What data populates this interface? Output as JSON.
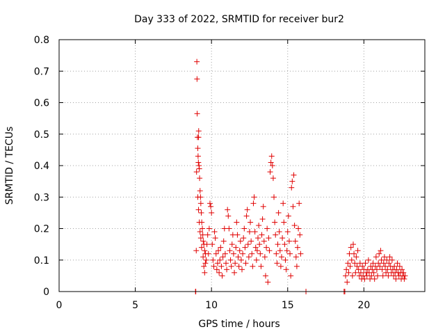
{
  "chart_data": {
    "type": "scatter",
    "title": "Day 333 of 2022, SRMTID for receiver bur2",
    "xlabel": "GPS time / hours",
    "ylabel": "SRMTID / TECUs",
    "xlim": [
      0,
      24
    ],
    "ylim": [
      0,
      0.8
    ],
    "grid": true,
    "marker": "+",
    "series_color": "#e00000",
    "x_ticks": [
      0,
      5,
      10,
      15,
      20
    ],
    "x_tick_labels": [
      "0",
      "5",
      "10",
      "15",
      "20"
    ],
    "y_ticks": [
      0,
      0.1,
      0.2,
      0.3,
      0.4,
      0.5,
      0.6,
      0.7,
      0.8
    ],
    "y_tick_labels": [
      "0",
      "0.1",
      "0.2",
      "0.3",
      "0.4",
      "0.5",
      "0.6",
      "0.7",
      "0.8"
    ],
    "series": [
      {
        "name": "SRMTID bur2",
        "points": [
          [
            8.95,
            0
          ],
          [
            8.97,
            0
          ],
          [
            9.0,
            0.13
          ],
          [
            9.02,
            0.38
          ],
          [
            9.04,
            0.73
          ],
          [
            9.05,
            0.675
          ],
          [
            9.06,
            0.565
          ],
          [
            9.08,
            0.49
          ],
          [
            9.1,
            0.455
          ],
          [
            9.12,
            0.43
          ],
          [
            9.14,
            0.41
          ],
          [
            9.15,
            0.49
          ],
          [
            9.16,
            0.51
          ],
          [
            9.18,
            0.4
          ],
          [
            9.2,
            0.39
          ],
          [
            9.22,
            0.36
          ],
          [
            9.25,
            0.32
          ],
          [
            9.28,
            0.3
          ],
          [
            9.3,
            0.28
          ],
          [
            9.33,
            0.25
          ],
          [
            9.36,
            0.22
          ],
          [
            9.4,
            0.2
          ],
          [
            9.43,
            0.18
          ],
          [
            9.46,
            0.16
          ],
          [
            9.5,
            0.15
          ],
          [
            9.55,
            0.13
          ],
          [
            9.6,
            0.12
          ],
          [
            9.65,
            0.1
          ],
          [
            9.1,
            0.3
          ],
          [
            9.15,
            0.26
          ],
          [
            9.2,
            0.22
          ],
          [
            9.25,
            0.19
          ],
          [
            9.3,
            0.17
          ],
          [
            9.35,
            0.14
          ],
          [
            9.45,
            0.11
          ],
          [
            9.5,
            0.08
          ],
          [
            9.55,
            0.06
          ],
          [
            9.6,
            0.09
          ],
          [
            9.7,
            0.15
          ],
          [
            9.75,
            0.18
          ],
          [
            9.8,
            0.12
          ],
          [
            9.85,
            0.2
          ],
          [
            9.9,
            0.28
          ],
          [
            9.95,
            0.27
          ],
          [
            10.0,
            0.25
          ],
          [
            10.05,
            0.15
          ],
          [
            10.1,
            0.1
          ],
          [
            10.15,
            0.08
          ],
          [
            10.2,
            0.19
          ],
          [
            10.25,
            0.17
          ],
          [
            10.3,
            0.12
          ],
          [
            10.35,
            0.07
          ],
          [
            10.4,
            0.09
          ],
          [
            10.45,
            0.13
          ],
          [
            10.5,
            0.06
          ],
          [
            10.55,
            0.1
          ],
          [
            10.6,
            0.14
          ],
          [
            10.65,
            0.08
          ],
          [
            10.7,
            0.05
          ],
          [
            10.75,
            0.11
          ],
          [
            10.8,
            0.16
          ],
          [
            10.85,
            0.2
          ],
          [
            10.9,
            0.12
          ],
          [
            10.95,
            0.09
          ],
          [
            11.0,
            0.07
          ],
          [
            11.05,
            0.26
          ],
          [
            11.1,
            0.24
          ],
          [
            11.15,
            0.2
          ],
          [
            11.2,
            0.13
          ],
          [
            11.25,
            0.1
          ],
          [
            11.3,
            0.08
          ],
          [
            11.35,
            0.15
          ],
          [
            11.4,
            0.18
          ],
          [
            11.45,
            0.12
          ],
          [
            11.5,
            0.06
          ],
          [
            11.55,
            0.09
          ],
          [
            11.6,
            0.14
          ],
          [
            11.65,
            0.22
          ],
          [
            11.7,
            0.18
          ],
          [
            11.75,
            0.11
          ],
          [
            11.8,
            0.08
          ],
          [
            11.85,
            0.13
          ],
          [
            11.9,
            0.16
          ],
          [
            11.95,
            0.1
          ],
          [
            12.0,
            0.07
          ],
          [
            12.05,
            0.12
          ],
          [
            12.1,
            0.17
          ],
          [
            12.15,
            0.2
          ],
          [
            12.2,
            0.14
          ],
          [
            12.25,
            0.09
          ],
          [
            12.3,
            0.24
          ],
          [
            12.35,
            0.26
          ],
          [
            12.4,
            0.15
          ],
          [
            12.45,
            0.11
          ],
          [
            12.5,
            0.19
          ],
          [
            12.55,
            0.22
          ],
          [
            12.6,
            0.16
          ],
          [
            12.65,
            0.12
          ],
          [
            12.7,
            0.08
          ],
          [
            12.75,
            0.28
          ],
          [
            12.8,
            0.3
          ],
          [
            12.85,
            0.19
          ],
          [
            12.9,
            0.14
          ],
          [
            12.95,
            0.1
          ],
          [
            13.0,
            0.13
          ],
          [
            13.05,
            0.17
          ],
          [
            13.1,
            0.21
          ],
          [
            13.15,
            0.15
          ],
          [
            13.2,
            0.12
          ],
          [
            13.25,
            0.08
          ],
          [
            13.3,
            0.18
          ],
          [
            13.35,
            0.23
          ],
          [
            13.4,
            0.27
          ],
          [
            13.45,
            0.16
          ],
          [
            13.5,
            0.11
          ],
          [
            13.55,
            0.05
          ],
          [
            13.6,
            0.14
          ],
          [
            13.65,
            0.2
          ],
          [
            13.7,
            0.03
          ],
          [
            13.75,
            0.17
          ],
          [
            13.8,
            0.13
          ],
          [
            13.85,
            0.38
          ],
          [
            13.9,
            0.41
          ],
          [
            13.95,
            0.43
          ],
          [
            14.0,
            0.4
          ],
          [
            14.05,
            0.36
          ],
          [
            14.1,
            0.3
          ],
          [
            14.15,
            0.22
          ],
          [
            14.2,
            0.18
          ],
          [
            14.25,
            0.12
          ],
          [
            14.3,
            0.09
          ],
          [
            14.35,
            0.15
          ],
          [
            14.4,
            0.25
          ],
          [
            14.45,
            0.19
          ],
          [
            14.5,
            0.13
          ],
          [
            14.55,
            0.08
          ],
          [
            14.6,
            0.11
          ],
          [
            14.65,
            0.17
          ],
          [
            14.7,
            0.28
          ],
          [
            14.75,
            0.22
          ],
          [
            14.8,
            0.15
          ],
          [
            14.85,
            0.1
          ],
          [
            14.9,
            0.07
          ],
          [
            14.95,
            0.13
          ],
          [
            15.0,
            0.19
          ],
          [
            15.05,
            0.24
          ],
          [
            15.1,
            0.16
          ],
          [
            15.15,
            0.12
          ],
          [
            15.2,
            0.05
          ],
          [
            15.25,
            0.33
          ],
          [
            15.3,
            0.35
          ],
          [
            15.35,
            0.27
          ],
          [
            15.4,
            0.37
          ],
          [
            15.45,
            0.21
          ],
          [
            15.5,
            0.16
          ],
          [
            15.55,
            0.11
          ],
          [
            15.6,
            0.08
          ],
          [
            15.65,
            0.14
          ],
          [
            15.7,
            0.2
          ],
          [
            15.75,
            0.28
          ],
          [
            15.8,
            0.18
          ],
          [
            15.85,
            0.12
          ],
          [
            16.2,
            0
          ],
          [
            18.7,
            0
          ],
          [
            18.75,
            0
          ],
          [
            18.8,
            0.05
          ],
          [
            18.85,
            0.07
          ],
          [
            18.9,
            0.03
          ],
          [
            18.95,
            0.09
          ],
          [
            19.0,
            0.06
          ],
          [
            19.05,
            0.12
          ],
          [
            19.1,
            0.08
          ],
          [
            19.15,
            0.14
          ],
          [
            19.2,
            0.1
          ],
          [
            19.25,
            0.05
          ],
          [
            19.3,
            0.15
          ],
          [
            19.35,
            0.12
          ],
          [
            19.4,
            0.09
          ],
          [
            19.45,
            0.06
          ],
          [
            19.5,
            0.11
          ],
          [
            19.55,
            0.08
          ],
          [
            19.6,
            0.13
          ],
          [
            19.65,
            0.07
          ],
          [
            19.7,
            0.05
          ],
          [
            19.75,
            0.09
          ],
          [
            19.8,
            0.06
          ],
          [
            19.85,
            0.04
          ],
          [
            19.9,
            0.08
          ],
          [
            19.95,
            0.05
          ],
          [
            20.0,
            0.07
          ],
          [
            20.05,
            0.04
          ],
          [
            20.1,
            0.09
          ],
          [
            20.15,
            0.06
          ],
          [
            20.2,
            0.05
          ],
          [
            20.25,
            0.07
          ],
          [
            20.3,
            0.1
          ],
          [
            20.35,
            0.06
          ],
          [
            20.4,
            0.04
          ],
          [
            20.45,
            0.08
          ],
          [
            20.5,
            0.05
          ],
          [
            20.55,
            0.07
          ],
          [
            20.6,
            0.09
          ],
          [
            20.65,
            0.06
          ],
          [
            20.7,
            0.04
          ],
          [
            20.75,
            0.08
          ],
          [
            20.8,
            0.11
          ],
          [
            20.85,
            0.07
          ],
          [
            20.9,
            0.05
          ],
          [
            20.95,
            0.09
          ],
          [
            21.0,
            0.12
          ],
          [
            21.05,
            0.08
          ],
          [
            21.1,
            0.13
          ],
          [
            21.15,
            0.1
          ],
          [
            21.2,
            0.07
          ],
          [
            21.25,
            0.05
          ],
          [
            21.3,
            0.09
          ],
          [
            21.35,
            0.11
          ],
          [
            21.4,
            0.08
          ],
          [
            21.45,
            0.06
          ],
          [
            21.5,
            0.1
          ],
          [
            21.55,
            0.07
          ],
          [
            21.6,
            0.05
          ],
          [
            21.65,
            0.09
          ],
          [
            21.7,
            0.11
          ],
          [
            21.75,
            0.08
          ],
          [
            21.8,
            0.06
          ],
          [
            21.85,
            0.1
          ],
          [
            21.9,
            0.07
          ],
          [
            21.95,
            0.05
          ],
          [
            22.0,
            0.08
          ],
          [
            22.05,
            0.06
          ],
          [
            22.1,
            0.04
          ],
          [
            22.15,
            0.07
          ],
          [
            22.2,
            0.09
          ],
          [
            22.25,
            0.06
          ],
          [
            22.3,
            0.05
          ],
          [
            22.35,
            0.08
          ],
          [
            22.4,
            0.06
          ],
          [
            22.45,
            0.04
          ],
          [
            22.5,
            0.07
          ],
          [
            22.55,
            0.05
          ],
          [
            22.6,
            0.06
          ],
          [
            22.65,
            0.04
          ],
          [
            22.7,
            0.05
          ]
        ]
      }
    ]
  }
}
